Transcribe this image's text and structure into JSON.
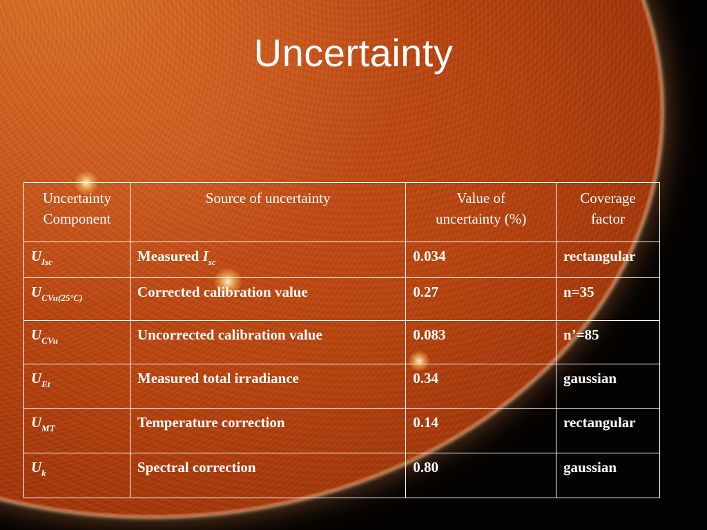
{
  "slide": {
    "title": "Uncertainty"
  },
  "table": {
    "headers": [
      [
        "Uncertainty",
        "Component"
      ],
      [
        "Source of uncertainty"
      ],
      [
        "Value of",
        "uncertainty (%)"
      ],
      [
        "Coverage",
        "factor"
      ]
    ],
    "rows": [
      {
        "component_symbol": "U",
        "component_subscript": "Isc",
        "source": "Measured ",
        "source_symbol": "I",
        "source_subscript": "sc",
        "value": "0.034",
        "coverage": "rectangular"
      },
      {
        "component_symbol": "U",
        "component_subscript": "CVu(25°C)",
        "source": "Corrected calibration value",
        "value": "0.27",
        "coverage": "n=35"
      },
      {
        "component_symbol": "U",
        "component_subscript": "CVu",
        "source": "Uncorrected calibration value",
        "value": "0.083",
        "coverage": "n’=85"
      },
      {
        "component_symbol": "U",
        "component_subscript": "Et",
        "source": "Measured total irradiance",
        "value": "0.34",
        "coverage": "gaussian"
      },
      {
        "component_symbol": "U",
        "component_subscript": "MT",
        "source": "Temperature correction",
        "value": "0.14",
        "coverage": "rectangular"
      },
      {
        "component_symbol": "U",
        "component_subscript": "k",
        "source": "Spectral correction",
        "value": "0.80",
        "coverage": "gaussian"
      }
    ]
  },
  "colors": {
    "text": "#ffffff",
    "sun_core": "#c8501a",
    "sun_edge": "#4a1202",
    "space": "#050302"
  }
}
